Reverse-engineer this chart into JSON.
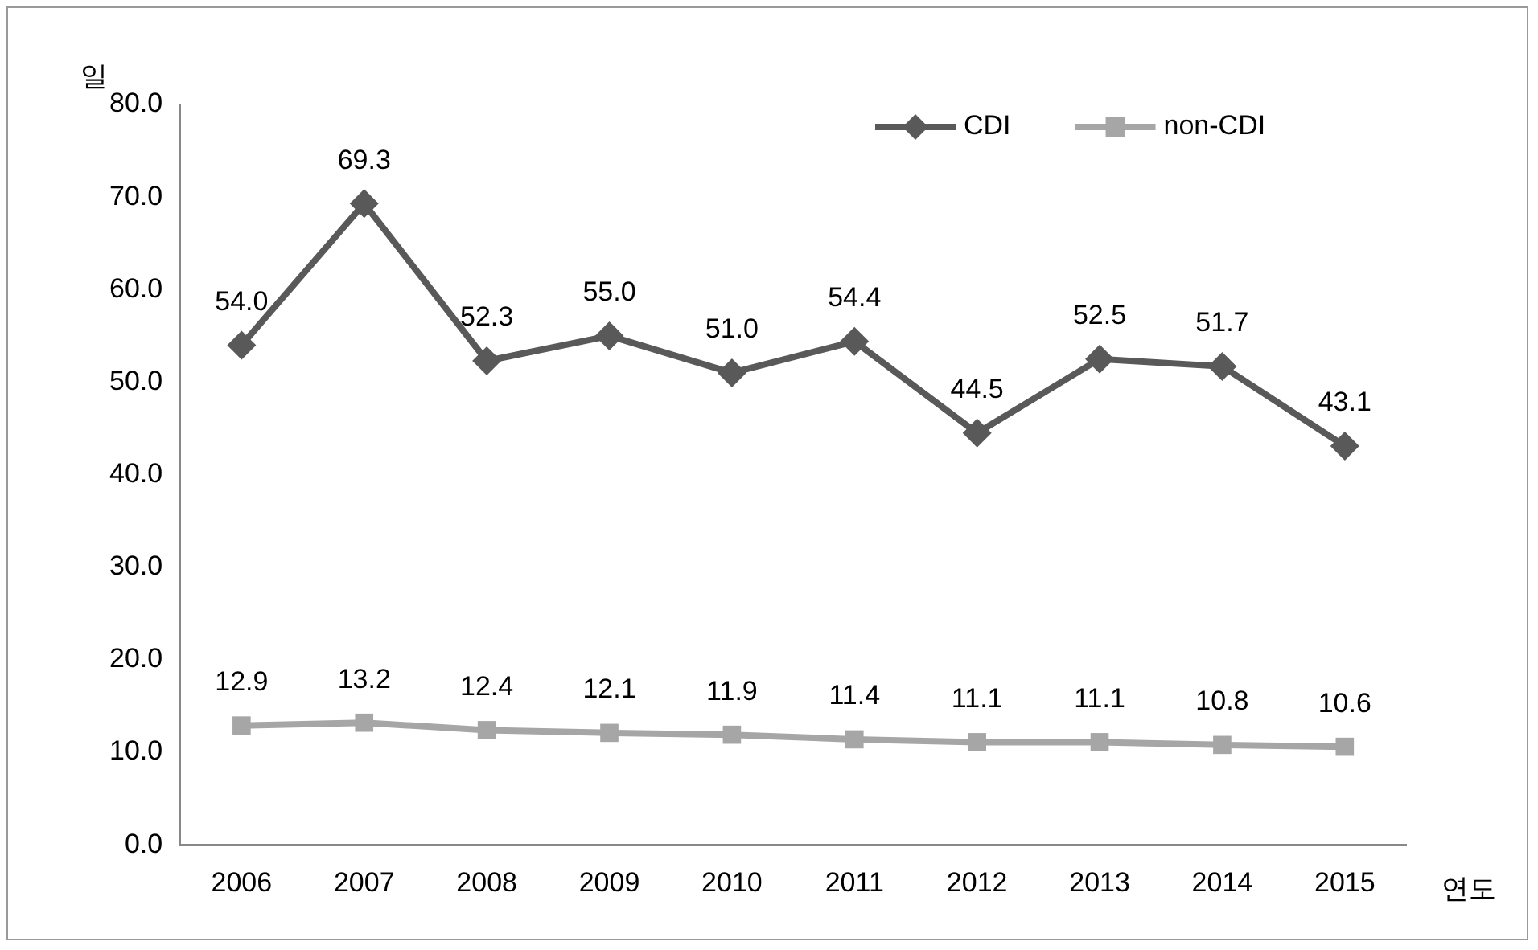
{
  "chart_data": {
    "type": "line",
    "ylabel": "일",
    "xlabel": "연도",
    "categories": [
      "2006",
      "2007",
      "2008",
      "2009",
      "2010",
      "2011",
      "2012",
      "2013",
      "2014",
      "2015"
    ],
    "series": [
      {
        "name": "CDI",
        "color": "#595959",
        "marker": "diamond",
        "values": [
          54.0,
          69.3,
          52.3,
          55.0,
          51.0,
          54.4,
          44.5,
          52.5,
          51.7,
          43.1
        ],
        "value_labels": [
          "54.0",
          "69.3",
          "52.3",
          "55.0",
          "51.0",
          "54.4",
          "44.5",
          "52.5",
          "51.7",
          "43.1"
        ]
      },
      {
        "name": "non-CDI",
        "color": "#a6a6a6",
        "marker": "square",
        "values": [
          12.9,
          13.2,
          12.4,
          12.1,
          11.9,
          11.4,
          11.1,
          11.1,
          10.8,
          10.6
        ],
        "value_labels": [
          "12.9",
          "13.2",
          "12.4",
          "12.1",
          "11.9",
          "11.4",
          "11.1",
          "11.1",
          "10.8",
          "10.6"
        ]
      }
    ],
    "ylim": [
      0,
      80
    ],
    "yticks": [
      {
        "value": 0,
        "label": "0.0"
      },
      {
        "value": 10,
        "label": "10.0"
      },
      {
        "value": 20,
        "label": "20.0"
      },
      {
        "value": 30,
        "label": "30.0"
      },
      {
        "value": 40,
        "label": "40.0"
      },
      {
        "value": 50,
        "label": "50.0"
      },
      {
        "value": 60,
        "label": "60.0"
      },
      {
        "value": 70,
        "label": "70.0"
      },
      {
        "value": 80,
        "label": "80.0"
      }
    ],
    "grid": false,
    "legend": "top right",
    "line_style": "solid"
  }
}
